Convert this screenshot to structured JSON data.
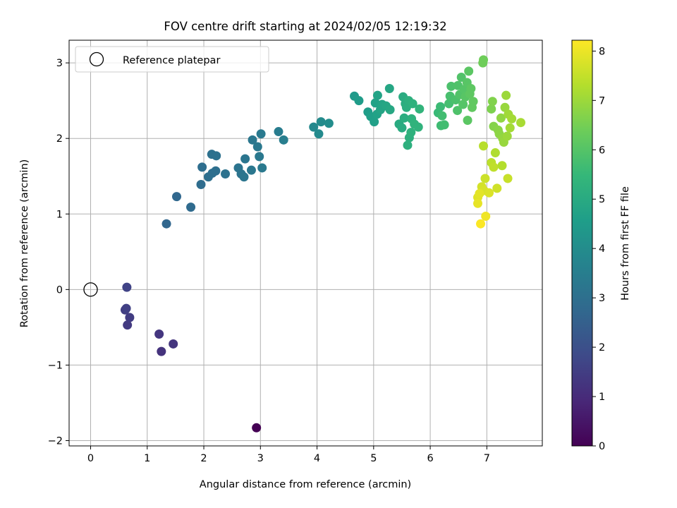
{
  "chart_data": {
    "type": "scatter",
    "title": "FOV centre drift starting at 2024/02/05 12:19:32",
    "xlabel": "Angular distance from reference (arcmin)",
    "ylabel": "Rotation from reference (arcmin)",
    "xlim": [
      -0.38,
      7.98
    ],
    "ylim": [
      -2.07,
      3.3
    ],
    "x_ticks": [
      0,
      1,
      2,
      3,
      4,
      5,
      6,
      7
    ],
    "y_ticks": [
      -2,
      -1,
      0,
      1,
      2,
      3
    ],
    "x_tick_labels": [
      "0",
      "1",
      "2",
      "3",
      "4",
      "5",
      "6",
      "7"
    ],
    "y_tick_labels": [
      "−2",
      "−1",
      "0",
      "1",
      "2",
      "3"
    ],
    "grid": true,
    "legend": {
      "placement": "top-left",
      "entries": [
        {
          "label": "Reference platepar",
          "marker": "open-circle"
        }
      ]
    },
    "reference_point": {
      "x": 0,
      "y": 0
    },
    "colorbar": {
      "label": "Hours from first FF file",
      "min": 0,
      "max": 8.22,
      "ticks": [
        0,
        1,
        2,
        3,
        4,
        5,
        6,
        7,
        8
      ],
      "tick_labels": [
        "0",
        "1",
        "2",
        "3",
        "4",
        "5",
        "6",
        "7",
        "8"
      ],
      "colormap": "viridis"
    },
    "points": [
      [
        2.93,
        -1.83,
        0.0
      ],
      [
        1.25,
        -0.82,
        1.2
      ],
      [
        1.46,
        -0.72,
        1.25
      ],
      [
        1.21,
        -0.59,
        1.3
      ],
      [
        0.65,
        -0.47,
        1.4
      ],
      [
        0.69,
        -0.37,
        1.45
      ],
      [
        0.61,
        -0.27,
        1.5
      ],
      [
        0.63,
        -0.25,
        1.55
      ],
      [
        0.64,
        0.03,
        1.65
      ],
      [
        1.34,
        0.87,
        2.7
      ],
      [
        1.52,
        1.23,
        2.75
      ],
      [
        1.77,
        1.09,
        2.85
      ],
      [
        1.95,
        1.39,
        2.9
      ],
      [
        1.97,
        1.62,
        2.95
      ],
      [
        2.08,
        1.49,
        3.0
      ],
      [
        2.15,
        1.54,
        3.0
      ],
      [
        2.21,
        1.57,
        3.0
      ],
      [
        2.14,
        1.79,
        3.05
      ],
      [
        2.22,
        1.77,
        3.05
      ],
      [
        2.38,
        1.53,
        3.1
      ],
      [
        2.61,
        1.61,
        3.15
      ],
      [
        2.66,
        1.53,
        3.15
      ],
      [
        2.71,
        1.49,
        3.2
      ],
      [
        2.73,
        1.73,
        3.2
      ],
      [
        2.84,
        1.58,
        3.25
      ],
      [
        2.86,
        1.98,
        3.25
      ],
      [
        2.95,
        1.89,
        3.3
      ],
      [
        2.98,
        1.76,
        3.3
      ],
      [
        3.01,
        2.06,
        3.35
      ],
      [
        3.03,
        1.61,
        3.35
      ],
      [
        3.32,
        2.09,
        3.45
      ],
      [
        3.41,
        1.98,
        3.5
      ],
      [
        3.94,
        2.15,
        3.85
      ],
      [
        4.03,
        2.06,
        3.9
      ],
      [
        4.07,
        2.22,
        3.95
      ],
      [
        4.21,
        2.2,
        4.0
      ],
      [
        4.66,
        2.56,
        4.45
      ],
      [
        4.74,
        2.5,
        4.5
      ],
      [
        4.9,
        2.35,
        4.55
      ],
      [
        4.95,
        2.29,
        4.6
      ],
      [
        5.01,
        2.22,
        4.65
      ],
      [
        5.03,
        2.47,
        4.7
      ],
      [
        5.06,
        2.32,
        4.7
      ],
      [
        5.07,
        2.57,
        4.75
      ],
      [
        5.12,
        2.38,
        4.8
      ],
      [
        5.15,
        2.45,
        4.8
      ],
      [
        5.22,
        2.43,
        4.85
      ],
      [
        5.28,
        2.66,
        4.85
      ],
      [
        5.29,
        2.38,
        4.9
      ],
      [
        5.45,
        2.19,
        5.0
      ],
      [
        5.5,
        2.14,
        5.05
      ],
      [
        5.52,
        2.55,
        5.05
      ],
      [
        5.54,
        2.27,
        5.1
      ],
      [
        5.56,
        2.46,
        5.1
      ],
      [
        5.58,
        2.41,
        5.15
      ],
      [
        5.6,
        1.91,
        5.2
      ],
      [
        5.62,
        2.5,
        5.2
      ],
      [
        5.63,
        2.01,
        5.2
      ],
      [
        5.66,
        2.08,
        5.25
      ],
      [
        5.67,
        2.26,
        5.25
      ],
      [
        5.69,
        2.46,
        5.25
      ],
      [
        5.72,
        2.19,
        5.3
      ],
      [
        5.79,
        2.15,
        5.3
      ],
      [
        5.81,
        2.39,
        5.35
      ],
      [
        6.14,
        2.34,
        5.55
      ],
      [
        6.18,
        2.42,
        5.6
      ],
      [
        6.19,
        2.17,
        5.65
      ],
      [
        6.21,
        2.3,
        5.7
      ],
      [
        6.25,
        2.18,
        5.7
      ],
      [
        6.33,
        2.46,
        5.75
      ],
      [
        6.35,
        2.56,
        5.8
      ],
      [
        6.37,
        2.69,
        5.85
      ],
      [
        6.45,
        2.51,
        5.85
      ],
      [
        6.48,
        2.37,
        5.9
      ],
      [
        6.49,
        2.7,
        5.9
      ],
      [
        6.52,
        2.58,
        5.95
      ],
      [
        6.55,
        2.81,
        5.95
      ],
      [
        6.58,
        2.45,
        6.0
      ],
      [
        6.6,
        2.65,
        6.0
      ],
      [
        6.62,
        2.55,
        6.05
      ],
      [
        6.65,
        2.74,
        6.05
      ],
      [
        6.66,
        2.24,
        6.1
      ],
      [
        6.68,
        2.89,
        6.1
      ],
      [
        6.7,
        2.59,
        6.15
      ],
      [
        6.72,
        2.66,
        6.15
      ],
      [
        6.74,
        2.41,
        6.2
      ],
      [
        6.76,
        2.49,
        6.2
      ],
      [
        6.93,
        3.0,
        6.4
      ],
      [
        6.94,
        3.04,
        6.4
      ],
      [
        7.08,
        2.39,
        6.6
      ],
      [
        7.1,
        2.49,
        6.65
      ],
      [
        7.12,
        2.16,
        6.7
      ],
      [
        7.2,
        2.11,
        6.75
      ],
      [
        7.22,
        2.06,
        6.8
      ],
      [
        7.25,
        2.27,
        6.85
      ],
      [
        7.28,
        2.0,
        6.9
      ],
      [
        7.3,
        1.95,
        6.95
      ],
      [
        7.32,
        2.41,
        6.95
      ],
      [
        7.34,
        2.57,
        7.0
      ],
      [
        7.36,
        2.03,
        7.0
      ],
      [
        7.38,
        2.32,
        7.05
      ],
      [
        7.41,
        2.14,
        7.1
      ],
      [
        7.44,
        2.26,
        7.1
      ],
      [
        7.6,
        2.21,
        7.15
      ],
      [
        7.15,
        1.81,
        7.25
      ],
      [
        7.27,
        1.64,
        7.3
      ],
      [
        6.94,
        1.9,
        7.35
      ],
      [
        7.08,
        1.68,
        7.4
      ],
      [
        7.12,
        1.62,
        7.45
      ],
      [
        7.37,
        1.47,
        7.55
      ],
      [
        6.97,
        1.47,
        7.6
      ],
      [
        7.18,
        1.34,
        7.65
      ],
      [
        6.91,
        1.36,
        7.7
      ],
      [
        6.95,
        1.31,
        7.75
      ],
      [
        7.04,
        1.28,
        7.8
      ],
      [
        6.84,
        1.22,
        7.85
      ],
      [
        6.87,
        1.27,
        7.9
      ],
      [
        6.84,
        1.14,
        7.95
      ],
      [
        6.98,
        0.97,
        8.05
      ],
      [
        6.89,
        0.87,
        8.2
      ]
    ]
  }
}
